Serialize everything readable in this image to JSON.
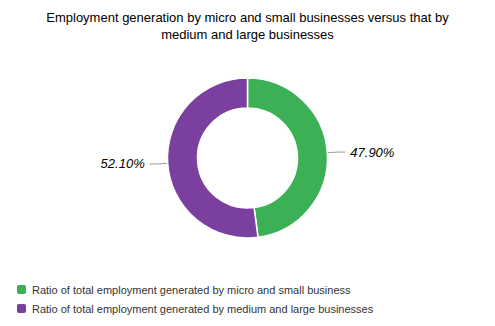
{
  "chart_data": {
    "type": "pie",
    "title": "Employment generation by micro and small businesses versus that by\nmedium and large businesses",
    "categories": [
      "Ratio of total employment generated by micro and small business",
      "Ratio of total employment generated by medium and large businesses"
    ],
    "values": [
      47.9,
      52.1
    ],
    "value_labels": [
      "47.90%",
      "52.10%"
    ],
    "colors": [
      "#3cb054",
      "#7b3fa0"
    ],
    "data_labels": true,
    "legend": "lower left"
  }
}
